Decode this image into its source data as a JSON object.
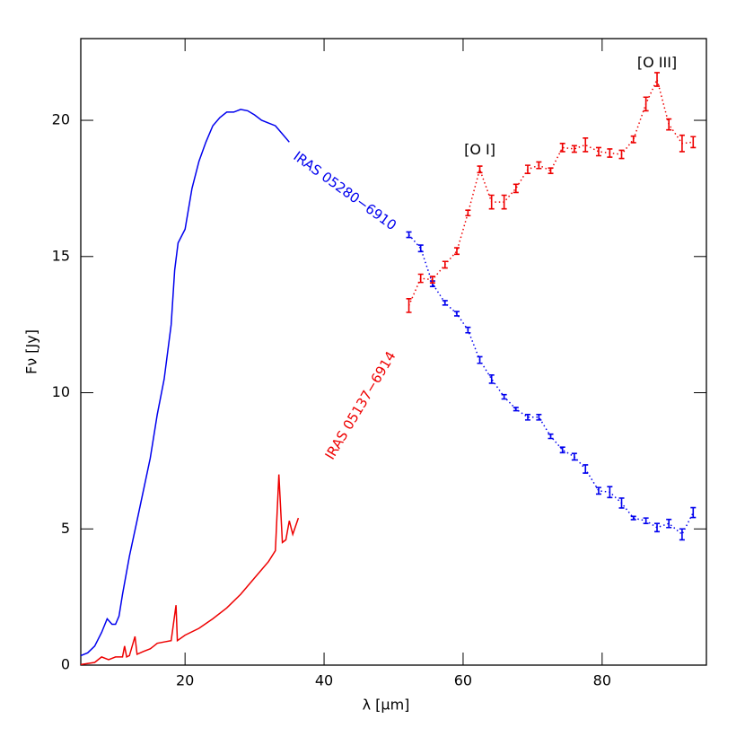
{
  "chart_data": {
    "type": "line",
    "xlabel": "λ [μm]",
    "ylabel": "Fν [Jy]",
    "xlim": [
      5,
      95
    ],
    "ylim": [
      0,
      23
    ],
    "xticks": [
      20,
      40,
      60,
      80
    ],
    "yticks": [
      0,
      5,
      10,
      15,
      20
    ],
    "annotations": [
      {
        "text": "[O I]",
        "x": 62.4,
        "y": 18.9
      },
      {
        "text": "[O III]",
        "x": 87.9,
        "y": 22.1
      }
    ],
    "series": [
      {
        "name": "IRAS 05280−6910",
        "color": "#0000ee",
        "spectrum": {
          "x": [
            5,
            6,
            7,
            8,
            8.8,
            9.5,
            10,
            10.5,
            11,
            12,
            13,
            14,
            15,
            16,
            17,
            18,
            18.5,
            19,
            20,
            21,
            22,
            23,
            24,
            25,
            26,
            27,
            28,
            29,
            30,
            31,
            32,
            33,
            34,
            35
          ],
          "values": [
            0.35,
            0.45,
            0.7,
            1.2,
            1.7,
            1.5,
            1.5,
            1.8,
            2.6,
            4.0,
            5.2,
            6.4,
            7.6,
            9.2,
            10.5,
            12.5,
            14.5,
            15.5,
            16.0,
            17.5,
            18.5,
            19.2,
            19.8,
            20.1,
            20.3,
            20.3,
            20.4,
            20.35,
            20.2,
            20.0,
            19.9,
            19.8,
            19.5,
            19.2
          ]
        },
        "photometry": {
          "x": [
            52.2,
            53.9,
            55.6,
            57.4,
            59.1,
            60.7,
            62.4,
            64.1,
            65.9,
            67.6,
            69.3,
            70.9,
            72.6,
            74.3,
            76,
            77.6,
            79.5,
            81.1,
            82.8,
            84.5,
            86.3,
            87.9,
            89.6,
            91.5,
            93.1
          ],
          "values": [
            15.8,
            15.3,
            14.0,
            13.3,
            12.9,
            12.3,
            11.2,
            10.5,
            9.85,
            9.4,
            9.1,
            9.1,
            8.4,
            7.9,
            7.65,
            7.2,
            6.4,
            6.35,
            5.95,
            5.4,
            5.3,
            5.05,
            5.2,
            4.8,
            5.6
          ],
          "errors": [
            0.1,
            0.12,
            0.1,
            0.08,
            0.08,
            0.1,
            0.12,
            0.15,
            0.08,
            0.06,
            0.1,
            0.1,
            0.08,
            0.1,
            0.12,
            0.15,
            0.12,
            0.2,
            0.18,
            0.06,
            0.1,
            0.15,
            0.15,
            0.2,
            0.18
          ]
        }
      },
      {
        "name": "IRAS 05137−6914",
        "color": "#ee0000",
        "spectrum": {
          "x": [
            5,
            7,
            8,
            9,
            10,
            11,
            11.3,
            11.6,
            12,
            12.8,
            13.1,
            14,
            15,
            15.5,
            16,
            17,
            18,
            18.7,
            18.9,
            20,
            22,
            24,
            26,
            28,
            30,
            32,
            33,
            33.5,
            34,
            34.5,
            35,
            35.5,
            36.3
          ],
          "values": [
            0.02,
            0.1,
            0.3,
            0.2,
            0.3,
            0.3,
            0.7,
            0.3,
            0.35,
            1.05,
            0.4,
            0.5,
            0.6,
            0.7,
            0.8,
            0.85,
            0.9,
            2.2,
            0.9,
            1.1,
            1.35,
            1.7,
            2.1,
            2.6,
            3.2,
            3.8,
            4.2,
            7.0,
            4.5,
            4.6,
            5.3,
            4.8,
            5.4
          ]
        },
        "photometry": {
          "x": [
            52.2,
            53.9,
            55.6,
            57.4,
            59.1,
            60.7,
            62.4,
            64.1,
            65.9,
            67.6,
            69.3,
            70.9,
            72.6,
            74.3,
            76,
            77.6,
            79.5,
            81.1,
            82.8,
            84.5,
            86.3,
            87.9,
            89.6,
            91.5,
            93.1
          ],
          "values": [
            13.2,
            14.2,
            14.15,
            14.7,
            15.2,
            16.6,
            18.2,
            17.0,
            17.0,
            17.5,
            18.2,
            18.35,
            18.15,
            19.0,
            18.95,
            19.1,
            18.85,
            18.8,
            18.75,
            19.3,
            20.6,
            21.5,
            19.85,
            19.15,
            19.2
          ],
          "errors": [
            0.25,
            0.15,
            0.12,
            0.12,
            0.12,
            0.1,
            0.12,
            0.25,
            0.25,
            0.15,
            0.15,
            0.12,
            0.1,
            0.15,
            0.12,
            0.25,
            0.15,
            0.15,
            0.15,
            0.12,
            0.25,
            0.25,
            0.2,
            0.3,
            0.2
          ]
        }
      }
    ]
  }
}
